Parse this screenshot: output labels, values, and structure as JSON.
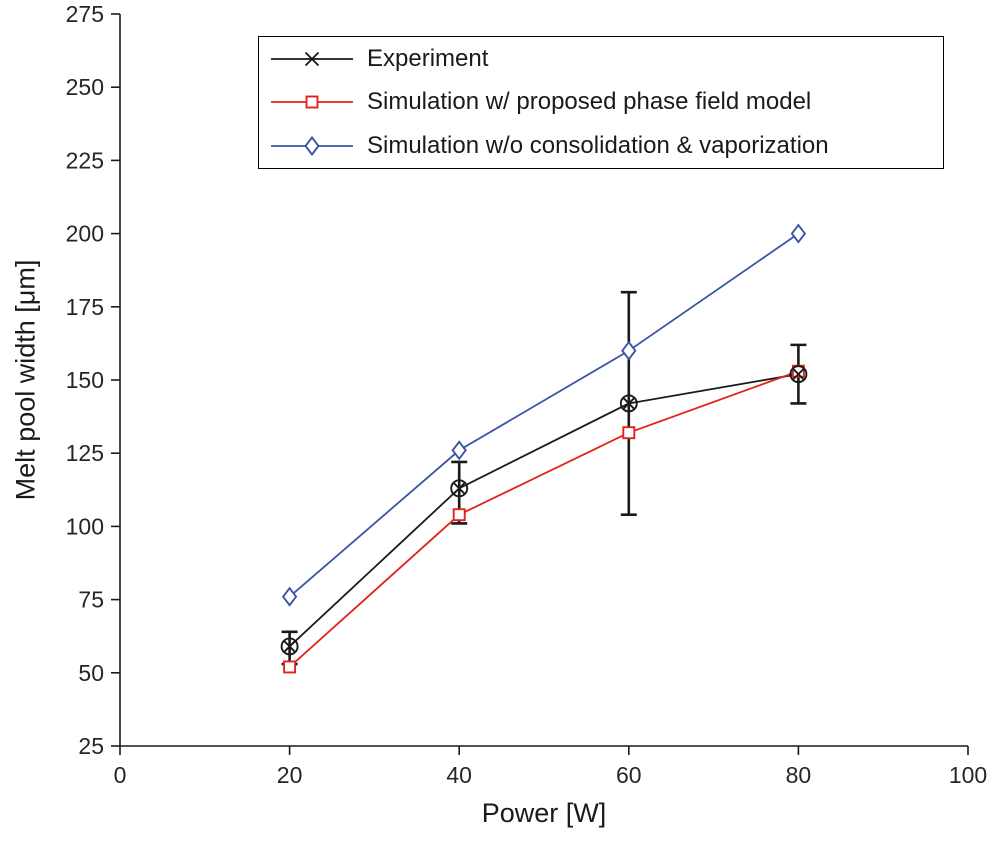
{
  "figure": {
    "background": "#ffffff",
    "axis_color": "#1a1a1a",
    "tick_label_color": "#262626"
  },
  "chart_data": {
    "type": "line",
    "title": "",
    "xlabel": "Power [W]",
    "ylabel": "Melt pool width [μm]",
    "xlim": [
      0,
      100
    ],
    "ylim": [
      25,
      275
    ],
    "xticks": [
      0,
      20,
      40,
      60,
      80,
      100
    ],
    "yticks": [
      25,
      50,
      75,
      100,
      125,
      150,
      175,
      200,
      225,
      250,
      275
    ],
    "grid": false,
    "legend_position": "top-inside",
    "x": [
      20,
      40,
      60,
      80
    ],
    "series": [
      {
        "name": "Experiment",
        "color": "#1a1a1a",
        "marker": "circle-x",
        "legend_marker": "x",
        "values": [
          59,
          113,
          142,
          152
        ],
        "error_low": [
          53,
          101,
          104,
          142
        ],
        "error_high": [
          64,
          122,
          180,
          162
        ]
      },
      {
        "name": "Simulation w/ proposed phase field model",
        "color": "#e2231a",
        "marker": "square",
        "legend_marker": "square",
        "values": [
          52,
          104,
          132,
          153
        ]
      },
      {
        "name": "Simulation w/o consolidation & vaporization",
        "color": "#3b54a5",
        "marker": "diamond",
        "legend_marker": "diamond",
        "values": [
          76,
          126,
          160,
          200
        ]
      }
    ]
  }
}
